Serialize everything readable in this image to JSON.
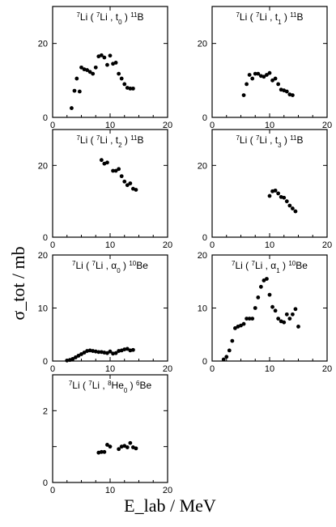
{
  "figure": {
    "ylabel": "σ_tot / mb",
    "xlabel": "E_lab / MeV"
  },
  "chart_data": [
    {
      "type": "scatter",
      "title": "7Li(7Li,t0)11B",
      "title_parts": {
        "sup1": "7",
        "a": "Li ( ",
        "sup2": "7",
        "b": "Li , t",
        "sub": "0",
        "c": " ) ",
        "sup3": "11",
        "d": "B"
      },
      "xlim": [
        0,
        20
      ],
      "ylim": [
        0,
        30
      ],
      "xticks": [
        0,
        10,
        20
      ],
      "yticks": [
        0,
        20
      ],
      "points": [
        [
          3.3,
          2.5
        ],
        [
          3.8,
          7.2
        ],
        [
          4.2,
          10.5
        ],
        [
          4.7,
          7.0
        ],
        [
          5.0,
          13.5
        ],
        [
          5.5,
          13.0
        ],
        [
          6.0,
          12.8
        ],
        [
          6.5,
          12.3
        ],
        [
          7.0,
          11.8
        ],
        [
          7.5,
          13.5
        ],
        [
          8.0,
          16.5
        ],
        [
          8.5,
          16.8
        ],
        [
          9.0,
          16.2
        ],
        [
          9.5,
          14.2
        ],
        [
          10.0,
          16.7
        ],
        [
          10.5,
          14.5
        ],
        [
          11.0,
          14.8
        ],
        [
          11.5,
          11.8
        ],
        [
          12.0,
          10.5
        ],
        [
          12.5,
          9.0
        ],
        [
          13.0,
          8.0
        ],
        [
          13.5,
          7.8
        ],
        [
          14.0,
          7.8
        ]
      ]
    },
    {
      "type": "scatter",
      "title": "7Li(7Li,t1)11B",
      "title_parts": {
        "sup1": "7",
        "a": "Li ( ",
        "sup2": "7",
        "b": "Li , t",
        "sub": "1",
        "c": " ) ",
        "sup3": "11",
        "d": "B"
      },
      "xlim": [
        0,
        20
      ],
      "ylim": [
        0,
        30
      ],
      "xticks": [
        0,
        10,
        20
      ],
      "yticks": [
        0,
        20
      ],
      "points": [
        [
          5.5,
          6.0
        ],
        [
          6.0,
          9.0
        ],
        [
          6.5,
          11.5
        ],
        [
          7.0,
          10.5
        ],
        [
          7.5,
          11.8
        ],
        [
          8.0,
          11.8
        ],
        [
          8.5,
          11.2
        ],
        [
          9.0,
          11.0
        ],
        [
          9.5,
          11.5
        ],
        [
          10.0,
          12.0
        ],
        [
          10.5,
          10.0
        ],
        [
          11.0,
          10.5
        ],
        [
          11.5,
          9.0
        ],
        [
          12.0,
          7.5
        ],
        [
          12.5,
          7.3
        ],
        [
          13.0,
          7.0
        ],
        [
          13.5,
          6.2
        ],
        [
          14.0,
          6.0
        ]
      ]
    },
    {
      "type": "scatter",
      "title": "7Li(7Li,t2)11B",
      "title_parts": {
        "sup1": "7",
        "a": "Li ( ",
        "sup2": "7",
        "b": "Li , t",
        "sub": "2",
        "c": " ) ",
        "sup3": "11",
        "d": "B"
      },
      "xlim": [
        0,
        20
      ],
      "ylim": [
        0,
        30
      ],
      "xticks": [
        0,
        10,
        20
      ],
      "yticks": [
        0,
        20
      ],
      "points": [
        [
          8.5,
          21.5
        ],
        [
          9.0,
          20.5
        ],
        [
          9.5,
          20.8
        ],
        [
          10.5,
          18.5
        ],
        [
          11.0,
          18.5
        ],
        [
          11.5,
          19.0
        ],
        [
          12.0,
          17.0
        ],
        [
          12.5,
          15.5
        ],
        [
          13.0,
          14.5
        ],
        [
          13.5,
          15.0
        ],
        [
          14.0,
          13.5
        ],
        [
          14.5,
          13.2
        ]
      ]
    },
    {
      "type": "scatter",
      "title": "7Li(7Li,t3)11B",
      "title_parts": {
        "sup1": "7",
        "a": "Li ( ",
        "sup2": "7",
        "b": "Li , t",
        "sub": "3",
        "c": " ) ",
        "sup3": "11",
        "d": "B"
      },
      "xlim": [
        0,
        20
      ],
      "ylim": [
        0,
        30
      ],
      "xticks": [
        0,
        10,
        20
      ],
      "yticks": [
        0,
        20
      ],
      "points": [
        [
          10.0,
          11.5
        ],
        [
          10.5,
          12.8
        ],
        [
          11.0,
          13.0
        ],
        [
          11.5,
          12.2
        ],
        [
          12.0,
          11.2
        ],
        [
          12.5,
          11.0
        ],
        [
          13.0,
          10.0
        ],
        [
          13.5,
          8.8
        ],
        [
          14.0,
          8.0
        ],
        [
          14.5,
          7.2
        ]
      ]
    },
    {
      "type": "scatter",
      "title": "7Li(7Li,α0)10Be",
      "title_parts": {
        "sup1": "7",
        "a": "Li ( ",
        "sup2": "7",
        "b": "Li , α",
        "sub": "0",
        "c": " ) ",
        "sup3": "10",
        "d": "Be"
      },
      "xlim": [
        0,
        20
      ],
      "ylim": [
        0,
        20
      ],
      "xticks": [
        0,
        10,
        20
      ],
      "yticks": [
        0,
        10,
        20
      ],
      "points": [
        [
          2.5,
          0.1
        ],
        [
          3.0,
          0.2
        ],
        [
          3.5,
          0.4
        ],
        [
          4.0,
          0.7
        ],
        [
          4.5,
          1.0
        ],
        [
          5.0,
          1.3
        ],
        [
          5.5,
          1.6
        ],
        [
          6.0,
          1.9
        ],
        [
          6.5,
          2.0
        ],
        [
          7.0,
          1.9
        ],
        [
          7.5,
          1.8
        ],
        [
          8.0,
          1.7
        ],
        [
          8.5,
          1.7
        ],
        [
          9.0,
          1.6
        ],
        [
          9.5,
          1.5
        ],
        [
          10.0,
          1.8
        ],
        [
          10.5,
          1.4
        ],
        [
          11.0,
          1.5
        ],
        [
          11.5,
          1.9
        ],
        [
          12.0,
          2.0
        ],
        [
          12.5,
          2.2
        ],
        [
          13.0,
          2.3
        ],
        [
          13.5,
          2.0
        ],
        [
          14.0,
          2.1
        ]
      ]
    },
    {
      "type": "scatter",
      "title": "7Li(7Li,α1)10Be",
      "title_parts": {
        "sup1": "7",
        "a": "Li ( ",
        "sup2": "7",
        "b": "Li , α",
        "sub": "1",
        "c": " ) ",
        "sup3": "10",
        "d": "Be"
      },
      "xlim": [
        0,
        20
      ],
      "ylim": [
        0,
        20
      ],
      "xticks": [
        0,
        10,
        20
      ],
      "yticks": [
        0,
        10,
        20
      ],
      "points": [
        [
          2.0,
          0.3
        ],
        [
          2.5,
          0.8
        ],
        [
          3.0,
          2.0
        ],
        [
          3.5,
          3.8
        ],
        [
          4.0,
          6.2
        ],
        [
          4.5,
          6.5
        ],
        [
          5.0,
          6.7
        ],
        [
          5.5,
          7.0
        ],
        [
          6.0,
          8.0
        ],
        [
          6.5,
          8.0
        ],
        [
          7.0,
          8.0
        ],
        [
          7.5,
          10.0
        ],
        [
          8.0,
          12.0
        ],
        [
          8.5,
          14.0
        ],
        [
          9.0,
          15.2
        ],
        [
          9.5,
          15.5
        ],
        [
          10.0,
          12.5
        ],
        [
          10.5,
          10.2
        ],
        [
          11.0,
          9.5
        ],
        [
          11.5,
          8.0
        ],
        [
          12.0,
          7.5
        ],
        [
          12.5,
          7.3
        ],
        [
          13.0,
          8.8
        ],
        [
          13.5,
          8.0
        ],
        [
          14.0,
          8.8
        ],
        [
          14.5,
          9.8
        ],
        [
          15.0,
          6.5
        ]
      ]
    },
    {
      "type": "scatter",
      "title": "7Li(7Li,8He0)6Be",
      "title_parts": {
        "sup1": "7",
        "a": "Li ( ",
        "sup2": "7",
        "b": "Li , ",
        "sup4": "8",
        "e": "He",
        "sub": "0",
        "c": " ) ",
        "sup3": "6",
        "d": "Be"
      },
      "xlim": [
        0,
        20
      ],
      "ylim": [
        0,
        3
      ],
      "xticks": [
        0,
        10,
        20
      ],
      "yticks": [
        0,
        1,
        2
      ],
      "ytick_labels": [
        "0",
        "",
        "2"
      ],
      "points": [
        [
          8.0,
          0.83
        ],
        [
          8.5,
          0.85
        ],
        [
          9.0,
          0.85
        ],
        [
          9.5,
          1.05
        ],
        [
          10.0,
          1.0
        ],
        [
          11.5,
          0.93
        ],
        [
          12.0,
          1.0
        ],
        [
          12.5,
          1.02
        ],
        [
          13.0,
          0.98
        ],
        [
          13.5,
          1.1
        ],
        [
          14.0,
          0.98
        ],
        [
          14.5,
          0.95
        ]
      ]
    }
  ]
}
